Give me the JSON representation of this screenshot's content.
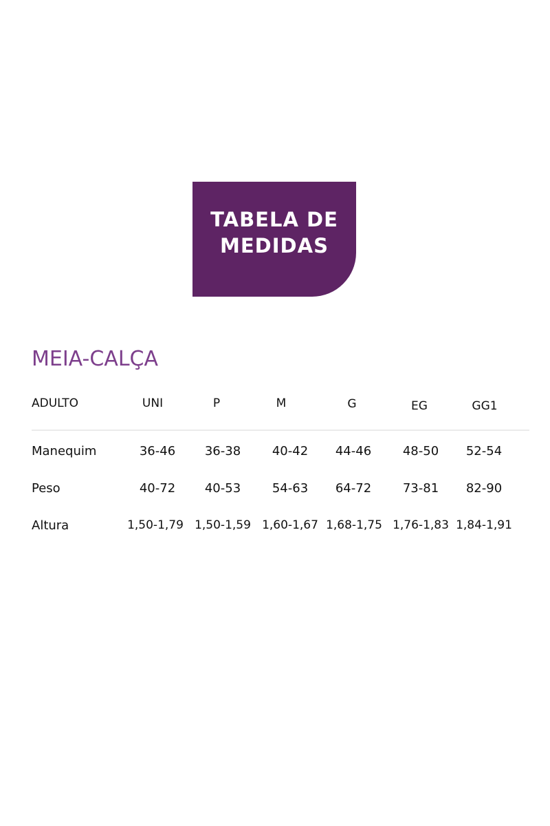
{
  "banner": {
    "line1": "TABELA DE",
    "line2": "MEDIDAS",
    "color": "#5e2464"
  },
  "title": "MEIA-CALÇA",
  "title_color": "#7d3f8c",
  "table": {
    "header_label": "ADULTO",
    "columns": [
      "UNI",
      "P",
      "M",
      "G",
      "EG",
      "GG1"
    ],
    "rows": [
      {
        "label": "Manequim",
        "values": [
          "36-46",
          "36-38",
          "40-42",
          "44-46",
          "48-50",
          "52-54"
        ]
      },
      {
        "label": "Peso",
        "values": [
          "40-72",
          "40-53",
          "54-63",
          "64-72",
          "73-81",
          "82-90"
        ]
      },
      {
        "label": "Altura",
        "values": [
          "1,50-1,79",
          "1,50-1,59",
          "1,60-1,67",
          "1,68-1,75",
          "1,76-1,83",
          "1,84-1,91"
        ]
      }
    ]
  }
}
